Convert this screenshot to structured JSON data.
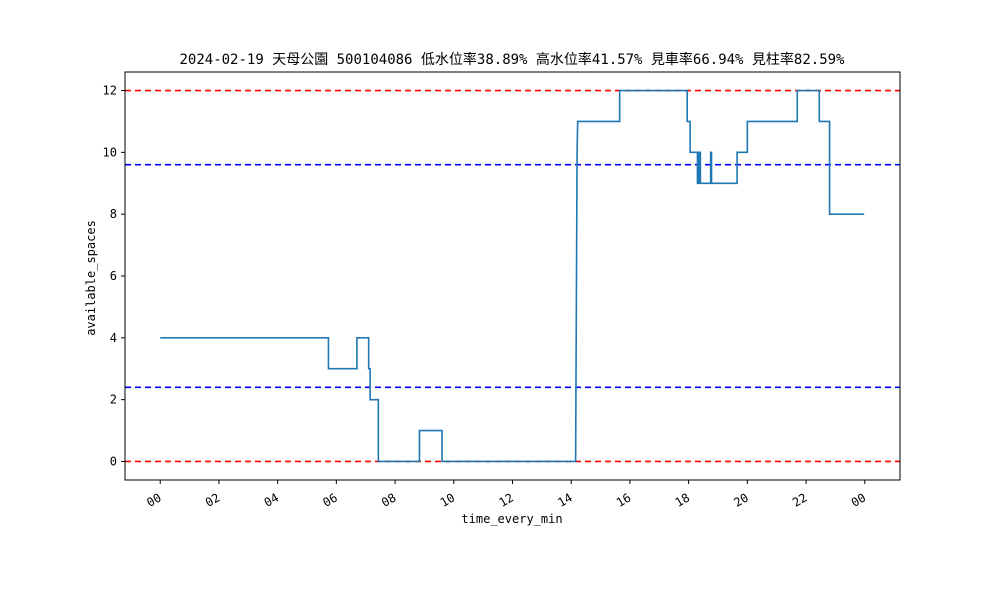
{
  "chart_data": {
    "type": "line",
    "title": "2024-02-19 天母公園 500104086 低水位率38.89% 高水位率41.57% 見車率66.94% 見柱率82.59%",
    "xlabel": "time_every_min",
    "ylabel": "available_spaces",
    "x_ticks": [
      "00",
      "02",
      "04",
      "06",
      "08",
      "10",
      "12",
      "14",
      "16",
      "18",
      "20",
      "22",
      "00"
    ],
    "x_range_hours": [
      -1.2,
      25.2
    ],
    "ylim": [
      -0.6,
      12.6
    ],
    "y_ticks": [
      0,
      2,
      4,
      6,
      8,
      10,
      12
    ],
    "hlines": [
      {
        "y": 12,
        "color": "#ff0000",
        "style": "dashed"
      },
      {
        "y": 0,
        "color": "#ff0000",
        "style": "dashed"
      },
      {
        "y": 9.6,
        "color": "#0000ff",
        "style": "dashed"
      },
      {
        "y": 2.4,
        "color": "#0000ff",
        "style": "dashed"
      }
    ],
    "series": [
      {
        "color": "#1f77b4",
        "points_hour_value": [
          [
            0,
            4
          ],
          [
            5.73,
            4
          ],
          [
            5.73,
            3
          ],
          [
            6.7,
            3
          ],
          [
            6.7,
            4
          ],
          [
            7.1,
            4
          ],
          [
            7.1,
            3
          ],
          [
            7.15,
            3
          ],
          [
            7.15,
            2
          ],
          [
            7.43,
            2
          ],
          [
            7.43,
            0
          ],
          [
            8.83,
            0
          ],
          [
            8.83,
            1
          ],
          [
            9.6,
            1
          ],
          [
            9.6,
            0
          ],
          [
            14.15,
            0
          ],
          [
            14.2,
            10
          ],
          [
            14.22,
            11
          ],
          [
            15.65,
            11
          ],
          [
            15.65,
            12
          ],
          [
            17.95,
            12
          ],
          [
            17.95,
            11
          ],
          [
            18.05,
            11
          ],
          [
            18.05,
            10
          ],
          [
            18.3,
            10
          ],
          [
            18.3,
            9
          ],
          [
            18.35,
            9
          ],
          [
            18.35,
            10
          ],
          [
            18.4,
            10
          ],
          [
            18.4,
            9
          ],
          [
            18.75,
            9
          ],
          [
            18.75,
            10
          ],
          [
            18.78,
            10
          ],
          [
            18.78,
            9
          ],
          [
            19.65,
            9
          ],
          [
            19.65,
            10
          ],
          [
            20.0,
            10
          ],
          [
            20.0,
            11
          ],
          [
            21.7,
            11
          ],
          [
            21.7,
            12
          ],
          [
            22.45,
            12
          ],
          [
            22.45,
            11
          ],
          [
            22.8,
            11
          ],
          [
            22.8,
            8
          ],
          [
            23.98,
            8
          ]
        ]
      }
    ],
    "grid": false,
    "legend": "none"
  }
}
